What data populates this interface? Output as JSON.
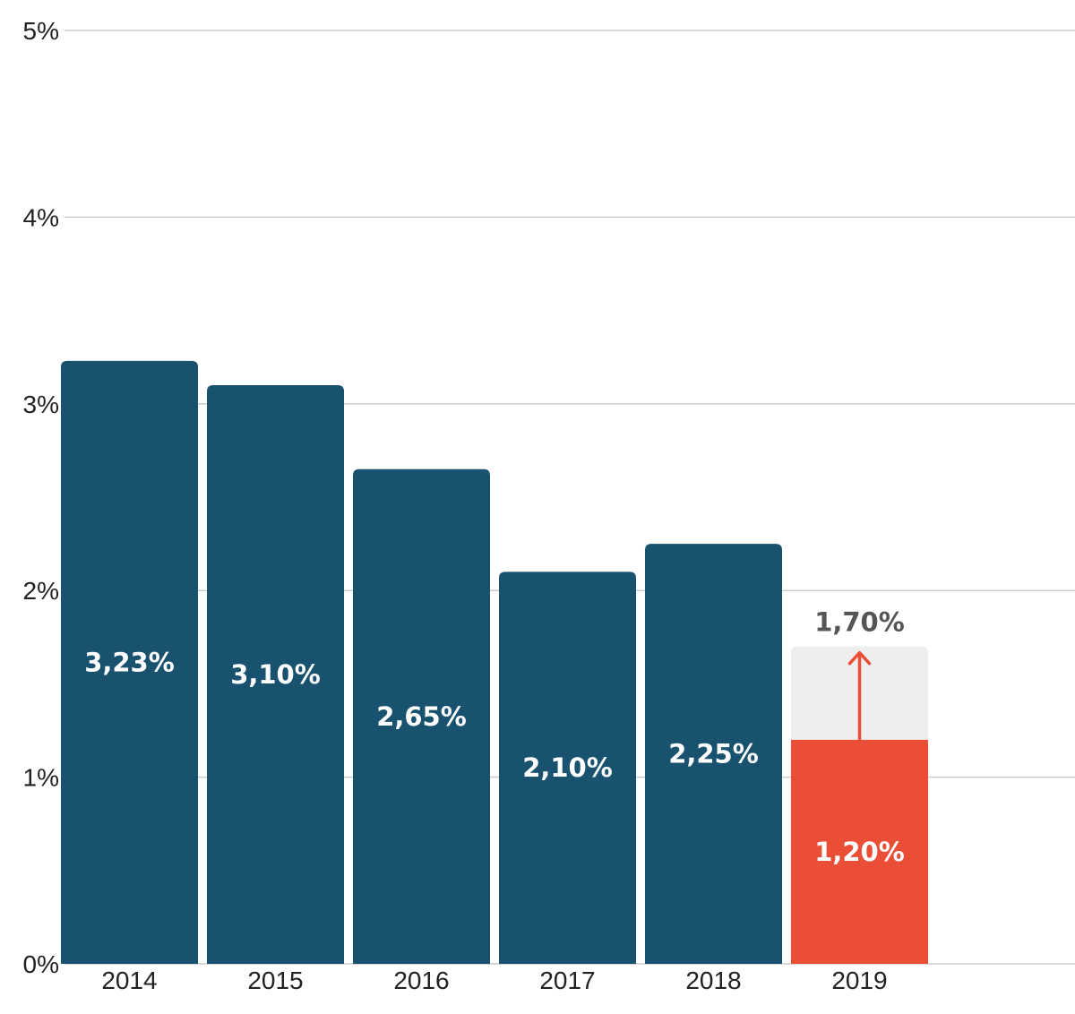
{
  "chart_data": {
    "type": "bar",
    "categories": [
      "2014",
      "2015",
      "2016",
      "2017",
      "2018",
      "2019"
    ],
    "values": [
      3.23,
      3.1,
      2.65,
      2.1,
      2.25,
      1.2
    ],
    "value_labels": [
      "3,23%",
      "3,10%",
      "2,65%",
      "2,10%",
      "2,25%",
      "1,20%"
    ],
    "target": {
      "category": "2019",
      "value": 1.7,
      "label": "1,70%"
    },
    "yticks": [
      0,
      1,
      2,
      3,
      4,
      5
    ],
    "ytick_labels": [
      "0%",
      "1%",
      "2%",
      "3%",
      "4%",
      "5%"
    ],
    "ylim": [
      0,
      5
    ],
    "grid": true,
    "colors": {
      "bar": "#18526f",
      "highlight": "#ea4e36",
      "target_bg": "#eeeeee",
      "grid": "#cccccc"
    }
  }
}
